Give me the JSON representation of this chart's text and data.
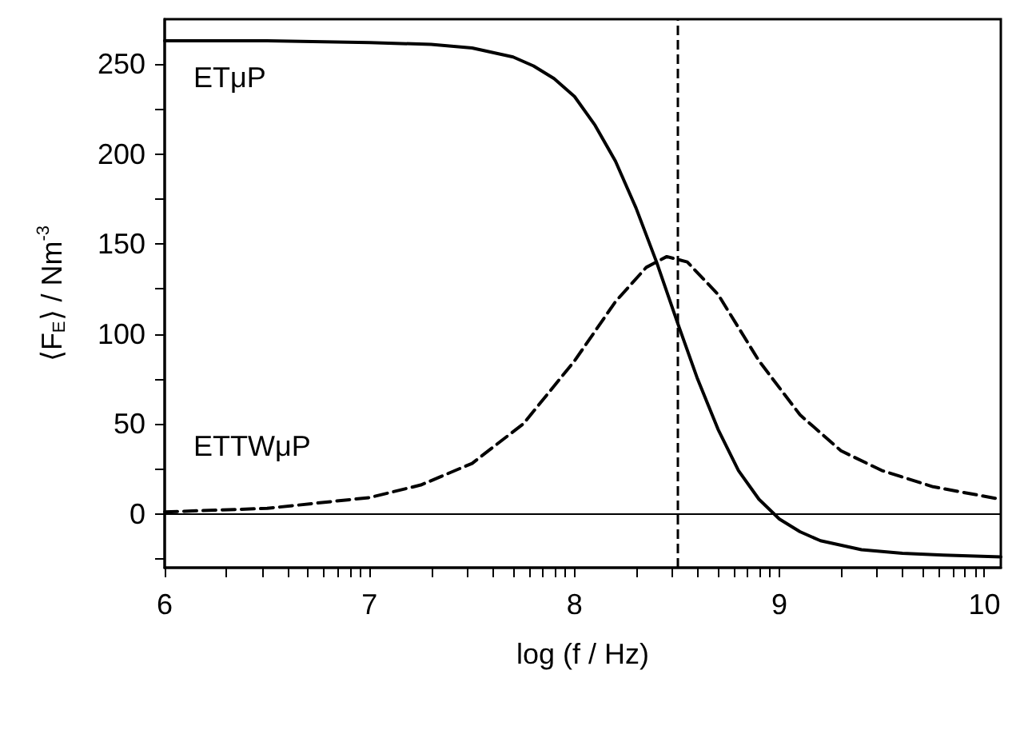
{
  "chart_data": {
    "type": "line",
    "xlabel": "log (f / Hz)",
    "ylabel": "⟨F$_{E}$⟩ / Nm$^{-3}$",
    "xlim": [
      6,
      10.08
    ],
    "ylim": [
      -30,
      275
    ],
    "xticks": [
      6,
      {
        "value": 6.301,
        "label": null
      },
      {
        "value": 6.477,
        "label": null
      },
      {
        "value": 6.602,
        "label": null
      },
      {
        "value": 6.699,
        "label": null
      },
      {
        "value": 6.778,
        "label": null
      },
      {
        "value": 6.845,
        "label": null
      },
      {
        "value": 6.903,
        "label": null
      },
      {
        "value": 6.954,
        "label": null
      },
      7,
      {
        "value": 7.301,
        "label": null
      },
      {
        "value": 7.477,
        "label": null
      },
      {
        "value": 7.602,
        "label": null
      },
      {
        "value": 7.699,
        "label": null
      },
      {
        "value": 7.778,
        "label": null
      },
      {
        "value": 7.845,
        "label": null
      },
      {
        "value": 7.903,
        "label": null
      },
      {
        "value": 7.954,
        "label": null
      },
      8,
      {
        "value": 8.301,
        "label": null
      },
      {
        "value": 8.477,
        "label": null
      },
      {
        "value": 8.602,
        "label": null
      },
      {
        "value": 8.699,
        "label": null
      },
      {
        "value": 8.778,
        "label": null
      },
      {
        "value": 8.845,
        "label": null
      },
      {
        "value": 8.903,
        "label": null
      },
      {
        "value": 8.954,
        "label": null
      },
      9,
      {
        "value": 9.301,
        "label": null
      },
      {
        "value": 9.477,
        "label": null
      },
      {
        "value": 9.602,
        "label": null
      },
      {
        "value": 9.699,
        "label": null
      },
      {
        "value": 9.778,
        "label": null
      },
      {
        "value": 9.845,
        "label": null
      },
      {
        "value": 9.903,
        "label": null
      },
      {
        "value": 9.954,
        "label": null
      },
      10
    ],
    "yticks": [
      {
        "value": -25,
        "label": null
      },
      0,
      {
        "value": 25,
        "label": null
      },
      50,
      {
        "value": 75,
        "label": null
      },
      100,
      {
        "value": 125,
        "label": null
      },
      150,
      {
        "value": 175,
        "label": null
      },
      200,
      {
        "value": 225,
        "label": null
      },
      250
    ],
    "grid": false,
    "legend": false,
    "marker": "none",
    "series": [
      {
        "name": "ETμP",
        "color": "#000000",
        "line_style": "solid",
        "x": [
          6,
          6.5,
          7,
          7.3,
          7.5,
          7.7,
          7.8,
          7.9,
          8.0,
          8.1,
          8.2,
          8.3,
          8.4,
          8.5,
          8.6,
          8.7,
          8.8,
          8.9,
          9.0,
          9.1,
          9.2,
          9.4,
          9.6,
          9.8,
          10.08
        ],
        "values": [
          263,
          263,
          262,
          261,
          259,
          254,
          249,
          242,
          232,
          216,
          196,
          170,
          140,
          107,
          75,
          47,
          24,
          8,
          -3,
          -10,
          -15,
          -20,
          -22,
          -23,
          -24
        ]
      },
      {
        "name": "ETTWμP",
        "color": "#000000",
        "line_style": "dashed",
        "x": [
          6,
          6.5,
          7,
          7.25,
          7.5,
          7.75,
          8.0,
          8.2,
          8.35,
          8.45,
          8.55,
          8.7,
          8.9,
          9.1,
          9.3,
          9.5,
          9.75,
          10.08
        ],
        "values": [
          1,
          3,
          9,
          16,
          28,
          50,
          85,
          118,
          137,
          143,
          140,
          122,
          85,
          55,
          35,
          24,
          15,
          8
        ]
      }
    ],
    "ref_lines": [
      {
        "axis": "x",
        "value": 8.5,
        "line_style": "dashed",
        "color": "#000000"
      },
      {
        "axis": "y",
        "value": 0,
        "line_style": "solid",
        "color": "#000000"
      }
    ]
  }
}
